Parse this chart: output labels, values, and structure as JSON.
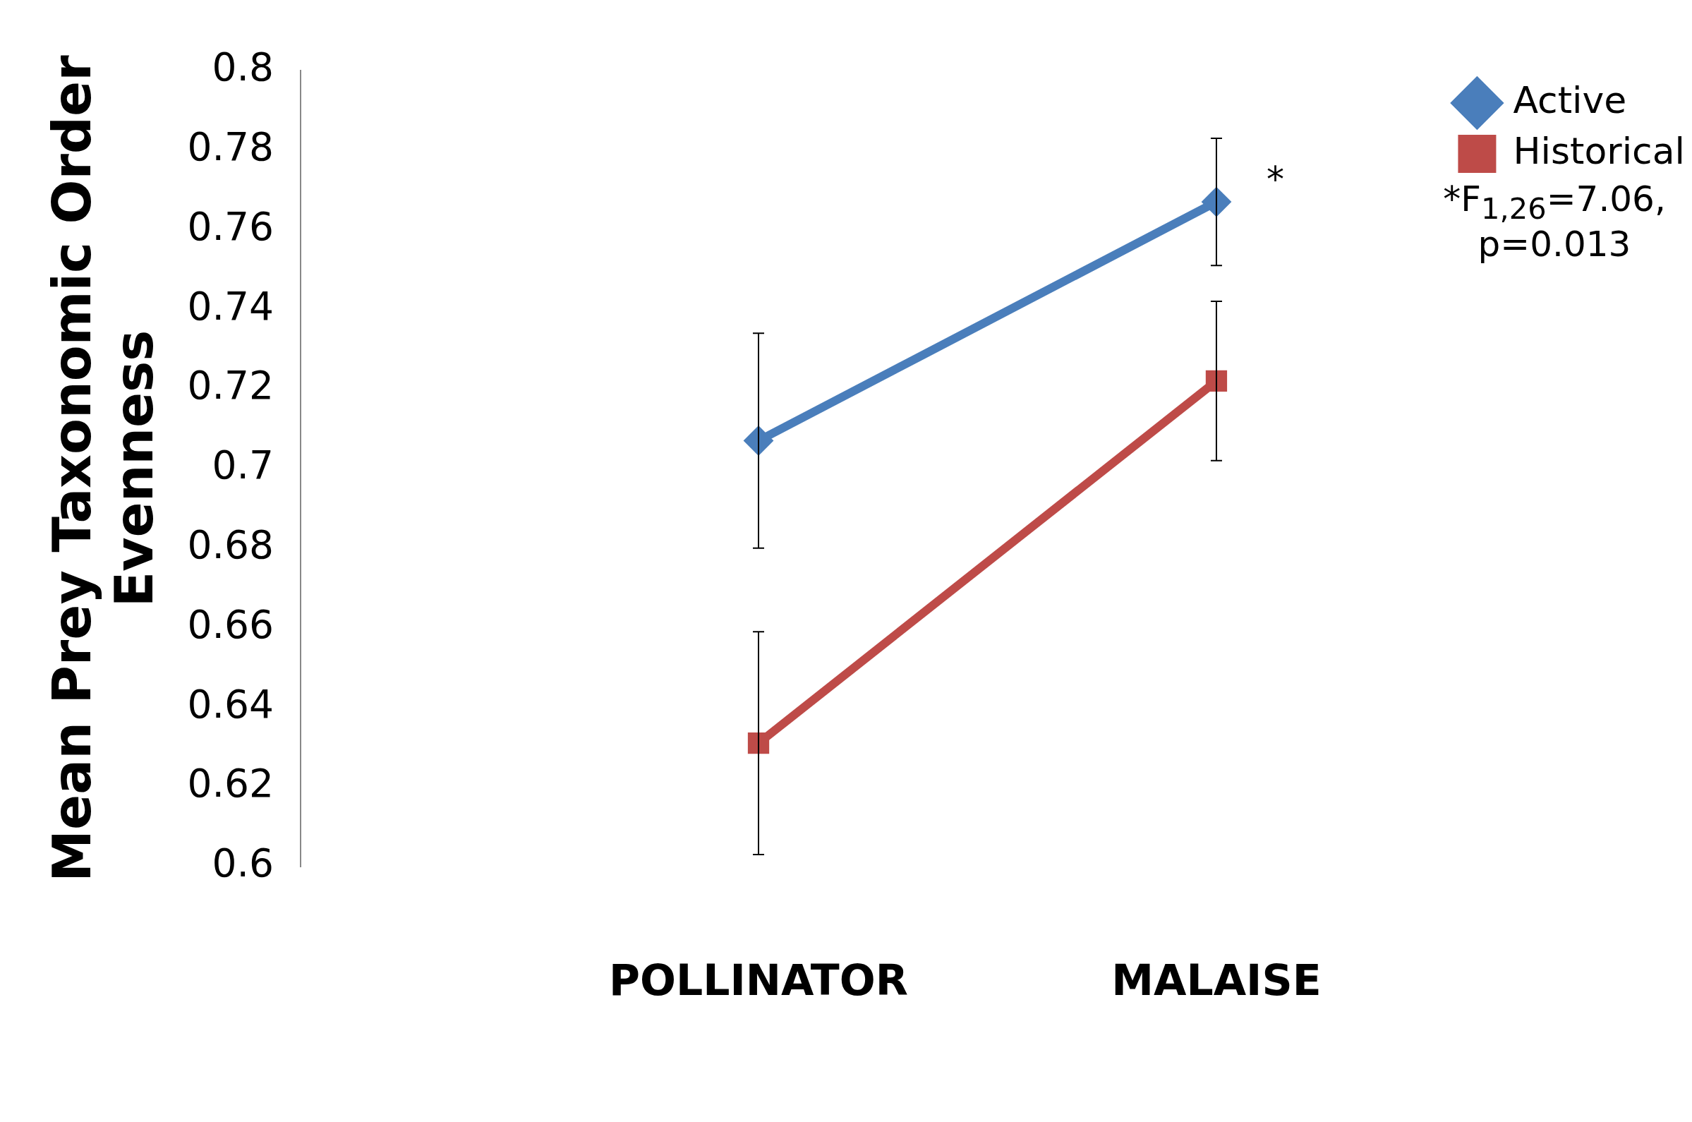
{
  "chart_data": {
    "type": "line",
    "ylabel": "Mean Prey Taxonomic Order Evenness",
    "categories": [
      "POLLINATOR",
      "MALAISE"
    ],
    "series": [
      {
        "name": "Active",
        "color": "#4a7ebb",
        "marker": "diamond",
        "values": [
          0.707,
          0.767
        ],
        "errors": [
          0.027,
          0.016
        ]
      },
      {
        "name": "Historical",
        "color": "#be4b48",
        "marker": "square",
        "values": [
          0.631,
          0.722
        ],
        "errors": [
          0.028,
          0.02
        ]
      }
    ],
    "ylim": [
      0.6,
      0.8
    ],
    "yticks": [
      0.6,
      0.62,
      0.64,
      0.66,
      0.68,
      0.7,
      0.72,
      0.74,
      0.76,
      0.78,
      0.8
    ],
    "grid": false,
    "legend": "top right",
    "annotations": [
      "*",
      "*F$_{1,26}$=7.06, p=0.013"
    ]
  }
}
